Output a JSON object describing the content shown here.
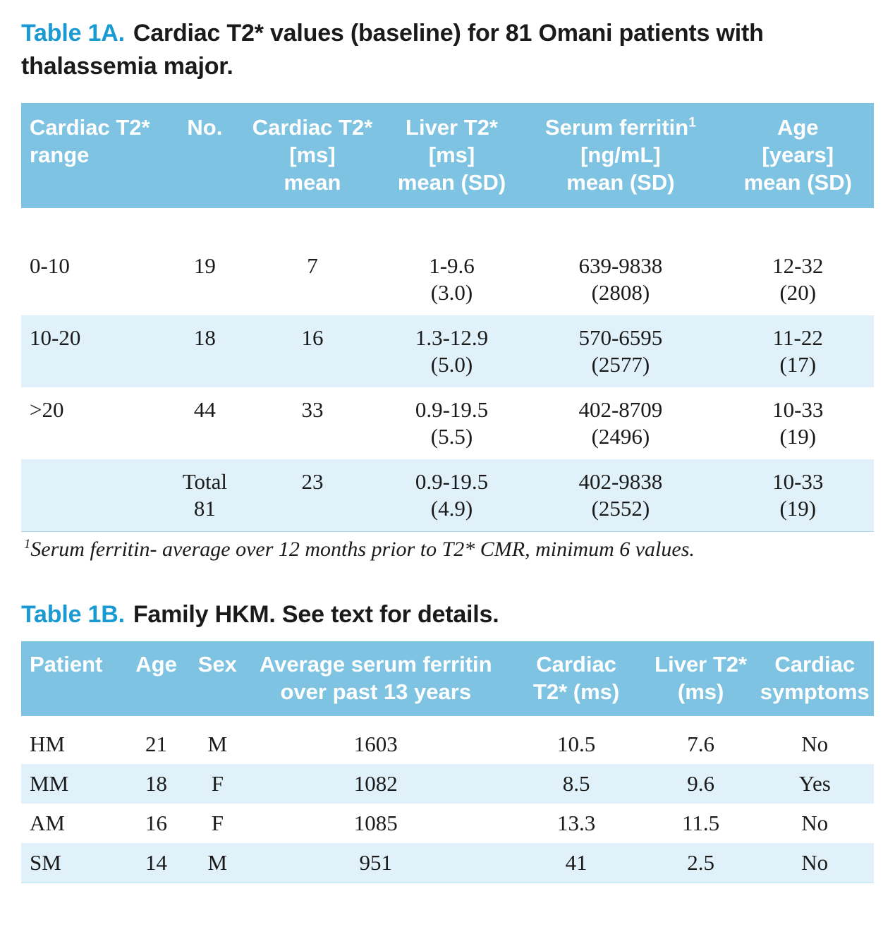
{
  "colors": {
    "header_blue": "#7fc3e2",
    "zebra_row_blue": "#e0f1f9",
    "caption_label_blue": "#1a9ad3"
  },
  "table_1a": {
    "caption_label": "Table 1A.",
    "caption_text": "Cardiac T2* values (baseline) for 81 Omani patients with thalassemia major.",
    "columns": [
      {
        "l1": "Cardiac T2*",
        "l2": "range",
        "l3": ""
      },
      {
        "l1": "No.",
        "l2": "",
        "l3": ""
      },
      {
        "l1": "Cardiac T2*",
        "l2": "[ms]",
        "l3": "mean"
      },
      {
        "l1": "Liver T2*",
        "l2": "[ms]",
        "l3": "mean (SD)"
      },
      {
        "l1": "Serum ferritin",
        "sup": "1",
        "l2": "[ng/mL]",
        "l3": "mean (SD)"
      },
      {
        "l1": "Age",
        "l2": "[years]",
        "l3": "mean (SD)"
      }
    ],
    "rows": [
      {
        "cells": [
          {
            "a": "0-10",
            "b": ""
          },
          {
            "a": "19",
            "b": ""
          },
          {
            "a": "7",
            "b": ""
          },
          {
            "a": "1-9.6",
            "b": "(3.0)"
          },
          {
            "a": "639-9838",
            "b": "(2808)"
          },
          {
            "a": "12-32",
            "b": "(20)"
          }
        ]
      },
      {
        "cells": [
          {
            "a": "10-20",
            "b": ""
          },
          {
            "a": "18",
            "b": ""
          },
          {
            "a": "16",
            "b": ""
          },
          {
            "a": "1.3-12.9",
            "b": "(5.0)"
          },
          {
            "a": "570-6595",
            "b": "(2577)"
          },
          {
            "a": "11-22",
            "b": "(17)"
          }
        ]
      },
      {
        "cells": [
          {
            "a": ">20",
            "b": ""
          },
          {
            "a": "44",
            "b": ""
          },
          {
            "a": "33",
            "b": ""
          },
          {
            "a": "0.9-19.5",
            "b": "(5.5)"
          },
          {
            "a": "402-8709",
            "b": "(2496)"
          },
          {
            "a": "10-33",
            "b": "(19)"
          }
        ]
      },
      {
        "cells": [
          {
            "a": "",
            "b": ""
          },
          {
            "a": "Total",
            "b": "81"
          },
          {
            "a": "23",
            "b": ""
          },
          {
            "a": "0.9-19.5",
            "b": "(4.9)"
          },
          {
            "a": "402-9838",
            "b": "(2552)"
          },
          {
            "a": "10-33",
            "b": "(19)"
          }
        ]
      }
    ],
    "footnote_sup": "1",
    "footnote": "Serum ferritin- average over 12 months prior to T2* CMR, minimum 6 values."
  },
  "table_1b": {
    "caption_label": "Table 1B.",
    "caption_text": "Family HKM. See text for details.",
    "columns": [
      {
        "l1": "Patient",
        "l2": ""
      },
      {
        "l1": "Age",
        "l2": ""
      },
      {
        "l1": "Sex",
        "l2": ""
      },
      {
        "l1": "Average serum ferritin",
        "l2": "over past 13 years"
      },
      {
        "l1": "Cardiac",
        "l2": "T2* (ms)"
      },
      {
        "l1": "Liver T2*",
        "l2": "(ms)"
      },
      {
        "l1": "Cardiac",
        "l2": "symptoms"
      }
    ],
    "rows": [
      {
        "cells": [
          "HM",
          "21",
          "M",
          "1603",
          "10.5",
          "7.6",
          "No"
        ]
      },
      {
        "cells": [
          "MM",
          "18",
          "F",
          "1082",
          "8.5",
          "9.6",
          "Yes"
        ]
      },
      {
        "cells": [
          "AM",
          "16",
          "F",
          "1085",
          "13.3",
          "11.5",
          "No"
        ]
      },
      {
        "cells": [
          "SM",
          "14",
          "M",
          "951",
          "41",
          "2.5",
          "No"
        ]
      }
    ]
  }
}
